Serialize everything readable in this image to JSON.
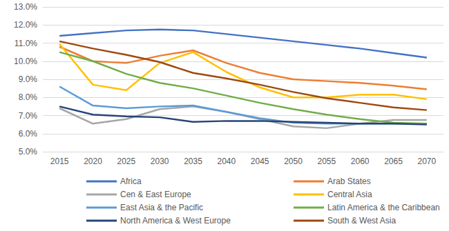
{
  "chart_data": {
    "type": "line",
    "categories": [
      "2015",
      "2020",
      "2025",
      "2030",
      "2035",
      "2040",
      "2045",
      "2050",
      "2055",
      "2060",
      "2065",
      "2070"
    ],
    "series": [
      {
        "name": "Africa",
        "color": "#4472C4",
        "values": [
          11.4,
          11.55,
          11.7,
          11.75,
          11.7,
          11.5,
          11.3,
          11.1,
          10.9,
          10.7,
          10.45,
          10.2
        ]
      },
      {
        "name": "Arab States",
        "color": "#ED7D31",
        "values": [
          10.8,
          10.0,
          9.9,
          10.3,
          10.6,
          9.9,
          9.35,
          9.0,
          8.9,
          8.8,
          8.65,
          8.45
        ]
      },
      {
        "name": "Cen & East Europe",
        "color": "#A5A5A5",
        "values": [
          7.4,
          6.55,
          6.8,
          7.35,
          7.5,
          7.2,
          6.8,
          6.4,
          6.3,
          6.55,
          6.75,
          6.75
        ]
      },
      {
        "name": "Central Asia",
        "color": "#FFC000",
        "values": [
          10.95,
          8.7,
          8.4,
          9.9,
          10.5,
          9.4,
          8.55,
          8.0,
          8.0,
          8.15,
          8.15,
          7.9
        ]
      },
      {
        "name": "East Asia & the Pacific",
        "color": "#5B9BD5",
        "values": [
          8.6,
          7.55,
          7.4,
          7.5,
          7.55,
          7.2,
          6.85,
          6.6,
          6.55,
          6.55,
          6.55,
          6.55
        ]
      },
      {
        "name": "Latin America & the Caribbean",
        "color": "#70AD47",
        "values": [
          10.5,
          10.0,
          9.3,
          8.8,
          8.5,
          8.1,
          7.7,
          7.35,
          7.05,
          6.8,
          6.6,
          6.55
        ]
      },
      {
        "name": "North America & West Europe",
        "color": "#264478",
        "values": [
          7.5,
          7.05,
          6.95,
          6.9,
          6.65,
          6.7,
          6.7,
          6.65,
          6.6,
          6.55,
          6.55,
          6.5
        ]
      },
      {
        "name": "South & West Asia",
        "color": "#9E480E",
        "values": [
          11.1,
          10.7,
          10.35,
          9.95,
          9.35,
          9.05,
          8.7,
          8.3,
          7.95,
          7.7,
          7.45,
          7.3
        ]
      }
    ],
    "ylim": [
      5,
      13
    ],
    "yticks": [
      {
        "value": 5,
        "label": "5.0%"
      },
      {
        "value": 6,
        "label": "6.0%"
      },
      {
        "value": 7,
        "label": "7.0%"
      },
      {
        "value": 8,
        "label": "8.0%"
      },
      {
        "value": 9,
        "label": "9.0%"
      },
      {
        "value": 10,
        "label": "10.0%"
      },
      {
        "value": 11,
        "label": "11.0%"
      },
      {
        "value": 12,
        "label": "12.0%"
      },
      {
        "value": 13,
        "label": "13.0%"
      }
    ],
    "grid": true,
    "legend": "bottom",
    "marker": "none",
    "line_style": "solid"
  }
}
